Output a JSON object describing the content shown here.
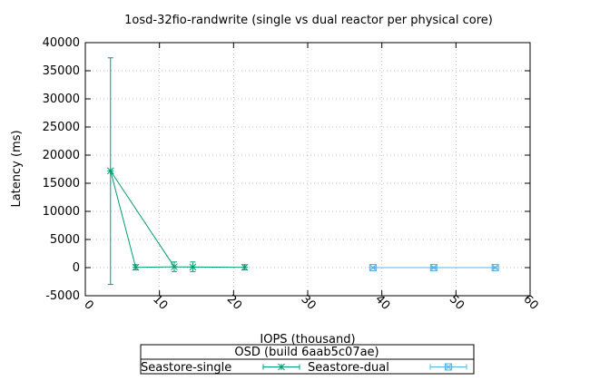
{
  "chart_data": {
    "type": "line",
    "title": "1osd-32fio-randwrite (single vs dual reactor per physical core)",
    "xlabel": "IOPS (thousand)",
    "ylabel": "Latency (ms)",
    "xlim": [
      0,
      60
    ],
    "ylim": [
      -5000,
      40000
    ],
    "x_ticks": [
      0,
      10,
      20,
      30,
      40,
      50,
      60
    ],
    "y_ticks": [
      -5000,
      0,
      5000,
      10000,
      15000,
      20000,
      25000,
      30000,
      35000,
      40000
    ],
    "grid": true,
    "legend": {
      "title": "OSD (build 6aab5c07ae)",
      "placement": "bottom-center"
    },
    "series": [
      {
        "name": "Seastore-single",
        "color": "#009e73",
        "points": [
          {
            "x": 3.4,
            "y": 17200,
            "low": -3000,
            "high": 37300
          },
          {
            "x": 12.0,
            "y": 150,
            "low": -700,
            "high": 1000
          },
          {
            "x": 14.5,
            "y": 100,
            "low": -700,
            "high": 1000
          },
          {
            "x": 21.5,
            "y": 50,
            "low": -400,
            "high": 500
          },
          {
            "x": 12.0,
            "y": 150,
            "low": -700,
            "high": 1000
          },
          {
            "x": 6.8,
            "y": 50,
            "low": -400,
            "high": 500
          },
          {
            "x": 3.4,
            "y": 17200,
            "low": -3000,
            "high": 37300
          }
        ]
      },
      {
        "name": "Seastore-dual",
        "color": "#56b4e9",
        "points": [
          {
            "x": 38.8,
            "y": 0,
            "low": -150,
            "high": 150
          },
          {
            "x": 47.0,
            "y": 0,
            "low": -150,
            "high": 150
          },
          {
            "x": 55.3,
            "y": 0,
            "low": -150,
            "high": 150
          }
        ]
      }
    ]
  }
}
